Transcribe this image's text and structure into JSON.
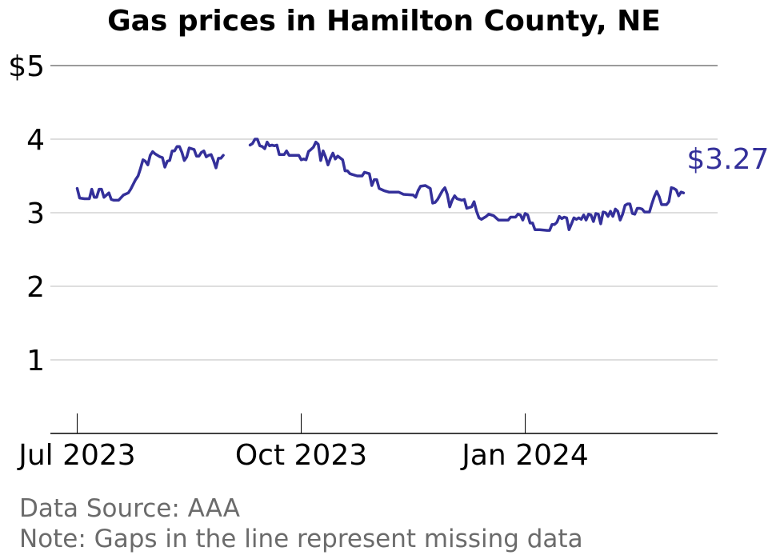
{
  "chart_data": {
    "type": "line",
    "title": "Gas prices in Hamilton County, NE",
    "y_ticks": [
      {
        "value": 5,
        "label": "$5"
      },
      {
        "value": 4,
        "label": "4"
      },
      {
        "value": 3,
        "label": "3"
      },
      {
        "value": 2,
        "label": "2"
      },
      {
        "value": 1,
        "label": "1"
      }
    ],
    "ylim": [
      0,
      5
    ],
    "x_domain": [
      "2023-06-20",
      "2024-03-20"
    ],
    "x_ticks": [
      {
        "date": "2023-07-01",
        "label": "Jul 2023"
      },
      {
        "date": "2023-10-01",
        "label": "Oct 2023"
      },
      {
        "date": "2024-01-01",
        "label": "Jan 2024"
      }
    ],
    "grid": "horizontal",
    "line_color": "#34309a",
    "end_label": "$3.27",
    "series": [
      {
        "segments": [
          [
            [
              "2023-07-01",
              3.33
            ],
            [
              "2023-07-02",
              3.2
            ],
            [
              "2023-07-04",
              3.19
            ],
            [
              "2023-07-06",
              3.19
            ],
            [
              "2023-07-07",
              3.32
            ],
            [
              "2023-07-08",
              3.21
            ],
            [
              "2023-07-09",
              3.21
            ],
            [
              "2023-07-10",
              3.32
            ],
            [
              "2023-07-11",
              3.32
            ],
            [
              "2023-07-12",
              3.21
            ],
            [
              "2023-07-14",
              3.27
            ],
            [
              "2023-07-15",
              3.18
            ],
            [
              "2023-07-16",
              3.17
            ],
            [
              "2023-07-18",
              3.17
            ],
            [
              "2023-07-20",
              3.24
            ],
            [
              "2023-07-22",
              3.27
            ],
            [
              "2023-07-23",
              3.32
            ],
            [
              "2023-07-25",
              3.45
            ],
            [
              "2023-07-26",
              3.5
            ],
            [
              "2023-07-27",
              3.6
            ],
            [
              "2023-07-28",
              3.72
            ],
            [
              "2023-07-29",
              3.7
            ],
            [
              "2023-07-30",
              3.65
            ],
            [
              "2023-07-31",
              3.78
            ],
            [
              "2023-08-01",
              3.83
            ],
            [
              "2023-08-02",
              3.8
            ],
            [
              "2023-08-04",
              3.76
            ],
            [
              "2023-08-05",
              3.75
            ],
            [
              "2023-08-06",
              3.62
            ],
            [
              "2023-08-07",
              3.7
            ],
            [
              "2023-08-08",
              3.71
            ],
            [
              "2023-08-09",
              3.84
            ],
            [
              "2023-08-10",
              3.84
            ],
            [
              "2023-08-11",
              3.9
            ],
            [
              "2023-08-12",
              3.9
            ],
            [
              "2023-08-13",
              3.82
            ],
            [
              "2023-08-14",
              3.71
            ],
            [
              "2023-08-15",
              3.76
            ],
            [
              "2023-08-16",
              3.88
            ],
            [
              "2023-08-18",
              3.86
            ],
            [
              "2023-08-19",
              3.77
            ],
            [
              "2023-08-20",
              3.77
            ],
            [
              "2023-08-21",
              3.82
            ],
            [
              "2023-08-22",
              3.84
            ],
            [
              "2023-08-23",
              3.76
            ],
            [
              "2023-08-24",
              3.78
            ],
            [
              "2023-08-25",
              3.79
            ],
            [
              "2023-08-26",
              3.71
            ],
            [
              "2023-08-27",
              3.61
            ],
            [
              "2023-08-28",
              3.74
            ],
            [
              "2023-08-29",
              3.74
            ],
            [
              "2023-08-30",
              3.78
            ]
          ],
          [
            [
              "2023-09-10",
              3.92
            ],
            [
              "2023-09-11",
              3.94
            ],
            [
              "2023-09-12",
              4.0
            ],
            [
              "2023-09-13",
              4.0
            ],
            [
              "2023-09-14",
              3.91
            ],
            [
              "2023-09-15",
              3.9
            ],
            [
              "2023-09-16",
              3.87
            ],
            [
              "2023-09-17",
              3.96
            ],
            [
              "2023-09-18",
              3.91
            ],
            [
              "2023-09-19",
              3.92
            ],
            [
              "2023-09-20",
              3.91
            ],
            [
              "2023-09-21",
              3.92
            ],
            [
              "2023-09-22",
              3.79
            ],
            [
              "2023-09-24",
              3.79
            ],
            [
              "2023-09-25",
              3.84
            ],
            [
              "2023-09-26",
              3.78
            ],
            [
              "2023-09-28",
              3.78
            ],
            [
              "2023-09-30",
              3.78
            ],
            [
              "2023-10-01",
              3.72
            ],
            [
              "2023-10-02",
              3.73
            ],
            [
              "2023-10-03",
              3.72
            ],
            [
              "2023-10-04",
              3.83
            ],
            [
              "2023-10-05",
              3.86
            ],
            [
              "2023-10-06",
              3.89
            ],
            [
              "2023-10-07",
              3.96
            ],
            [
              "2023-10-08",
              3.93
            ],
            [
              "2023-10-09",
              3.71
            ],
            [
              "2023-10-10",
              3.84
            ],
            [
              "2023-10-11",
              3.76
            ],
            [
              "2023-10-12",
              3.65
            ],
            [
              "2023-10-13",
              3.74
            ],
            [
              "2023-10-14",
              3.81
            ],
            [
              "2023-10-15",
              3.73
            ],
            [
              "2023-10-16",
              3.77
            ],
            [
              "2023-10-18",
              3.72
            ],
            [
              "2023-10-19",
              3.57
            ],
            [
              "2023-10-20",
              3.57
            ],
            [
              "2023-10-21",
              3.53
            ],
            [
              "2023-10-22",
              3.52
            ],
            [
              "2023-10-24",
              3.5
            ],
            [
              "2023-10-26",
              3.5
            ],
            [
              "2023-10-27",
              3.55
            ],
            [
              "2023-10-29",
              3.53
            ],
            [
              "2023-10-30",
              3.37
            ],
            [
              "2023-10-31",
              3.45
            ],
            [
              "2023-11-01",
              3.45
            ],
            [
              "2023-11-02",
              3.33
            ],
            [
              "2023-11-04",
              3.3
            ],
            [
              "2023-11-06",
              3.28
            ],
            [
              "2023-11-10",
              3.28
            ],
            [
              "2023-11-12",
              3.25
            ],
            [
              "2023-11-16",
              3.24
            ],
            [
              "2023-11-17",
              3.21
            ],
            [
              "2023-11-18",
              3.3
            ],
            [
              "2023-11-19",
              3.36
            ],
            [
              "2023-11-21",
              3.37
            ],
            [
              "2023-11-23",
              3.33
            ],
            [
              "2023-11-24",
              3.13
            ],
            [
              "2023-11-25",
              3.14
            ],
            [
              "2023-11-26",
              3.18
            ],
            [
              "2023-11-28",
              3.3
            ],
            [
              "2023-11-29",
              3.34
            ],
            [
              "2023-11-30",
              3.25
            ],
            [
              "2023-12-01",
              3.08
            ],
            [
              "2023-12-02",
              3.17
            ],
            [
              "2023-12-03",
              3.23
            ],
            [
              "2023-12-04",
              3.19
            ],
            [
              "2023-12-06",
              3.17
            ],
            [
              "2023-12-07",
              3.18
            ],
            [
              "2023-12-08",
              3.06
            ],
            [
              "2023-12-10",
              3.08
            ],
            [
              "2023-12-11",
              3.15
            ],
            [
              "2023-12-12",
              3.02
            ],
            [
              "2023-12-13",
              2.93
            ],
            [
              "2023-12-14",
              2.91
            ],
            [
              "2023-12-16",
              2.95
            ],
            [
              "2023-12-17",
              2.98
            ],
            [
              "2023-12-19",
              2.96
            ],
            [
              "2023-12-21",
              2.9
            ],
            [
              "2023-12-23",
              2.9
            ],
            [
              "2023-12-25",
              2.9
            ],
            [
              "2023-12-26",
              2.94
            ],
            [
              "2023-12-28",
              2.94
            ],
            [
              "2023-12-29",
              2.98
            ],
            [
              "2023-12-30",
              2.97
            ],
            [
              "2023-12-31",
              2.9
            ],
            [
              "2024-01-01",
              2.99
            ],
            [
              "2024-01-02",
              2.97
            ],
            [
              "2024-01-03",
              2.86
            ],
            [
              "2024-01-04",
              2.86
            ],
            [
              "2024-01-05",
              2.77
            ],
            [
              "2024-01-07",
              2.77
            ],
            [
              "2024-01-10",
              2.76
            ],
            [
              "2024-01-11",
              2.76
            ],
            [
              "2024-01-12",
              2.84
            ],
            [
              "2024-01-13",
              2.84
            ],
            [
              "2024-01-14",
              2.87
            ],
            [
              "2024-01-15",
              2.95
            ],
            [
              "2024-01-16",
              2.92
            ],
            [
              "2024-01-17",
              2.94
            ],
            [
              "2024-01-18",
              2.93
            ],
            [
              "2024-01-19",
              2.77
            ],
            [
              "2024-01-20",
              2.85
            ],
            [
              "2024-01-21",
              2.93
            ],
            [
              "2024-01-22",
              2.91
            ],
            [
              "2024-01-23",
              2.93
            ],
            [
              "2024-01-24",
              2.91
            ],
            [
              "2024-01-25",
              2.97
            ],
            [
              "2024-01-26",
              2.9
            ],
            [
              "2024-01-27",
              2.98
            ],
            [
              "2024-01-28",
              2.97
            ],
            [
              "2024-01-29",
              2.88
            ],
            [
              "2024-01-30",
              2.99
            ],
            [
              "2024-01-31",
              2.98
            ],
            [
              "2024-02-01",
              2.85
            ],
            [
              "2024-02-02",
              3.01
            ],
            [
              "2024-02-03",
              3.0
            ],
            [
              "2024-02-04",
              2.95
            ],
            [
              "2024-02-05",
              3.02
            ],
            [
              "2024-02-06",
              2.95
            ],
            [
              "2024-02-07",
              3.05
            ],
            [
              "2024-02-08",
              3.02
            ],
            [
              "2024-02-09",
              2.9
            ],
            [
              "2024-02-10",
              2.98
            ],
            [
              "2024-02-11",
              3.1
            ],
            [
              "2024-02-12",
              3.12
            ],
            [
              "2024-02-13",
              3.12
            ],
            [
              "2024-02-14",
              2.99
            ],
            [
              "2024-02-15",
              2.98
            ],
            [
              "2024-02-16",
              3.06
            ],
            [
              "2024-02-17",
              3.06
            ],
            [
              "2024-02-18",
              3.05
            ],
            [
              "2024-02-19",
              3.01
            ],
            [
              "2024-02-21",
              3.01
            ],
            [
              "2024-02-22",
              3.12
            ],
            [
              "2024-02-23",
              3.22
            ],
            [
              "2024-02-24",
              3.29
            ],
            [
              "2024-02-25",
              3.22
            ],
            [
              "2024-02-26",
              3.11
            ],
            [
              "2024-02-28",
              3.11
            ],
            [
              "2024-02-29",
              3.15
            ],
            [
              "2024-03-01",
              3.34
            ],
            [
              "2024-03-02",
              3.33
            ],
            [
              "2024-03-03",
              3.31
            ],
            [
              "2024-03-04",
              3.23
            ],
            [
              "2024-03-05",
              3.28
            ],
            [
              "2024-03-06",
              3.27
            ]
          ]
        ]
      }
    ],
    "footer": {
      "source": "Data Source: AAA",
      "note": "Note: Gaps in the line represent missing data"
    }
  }
}
